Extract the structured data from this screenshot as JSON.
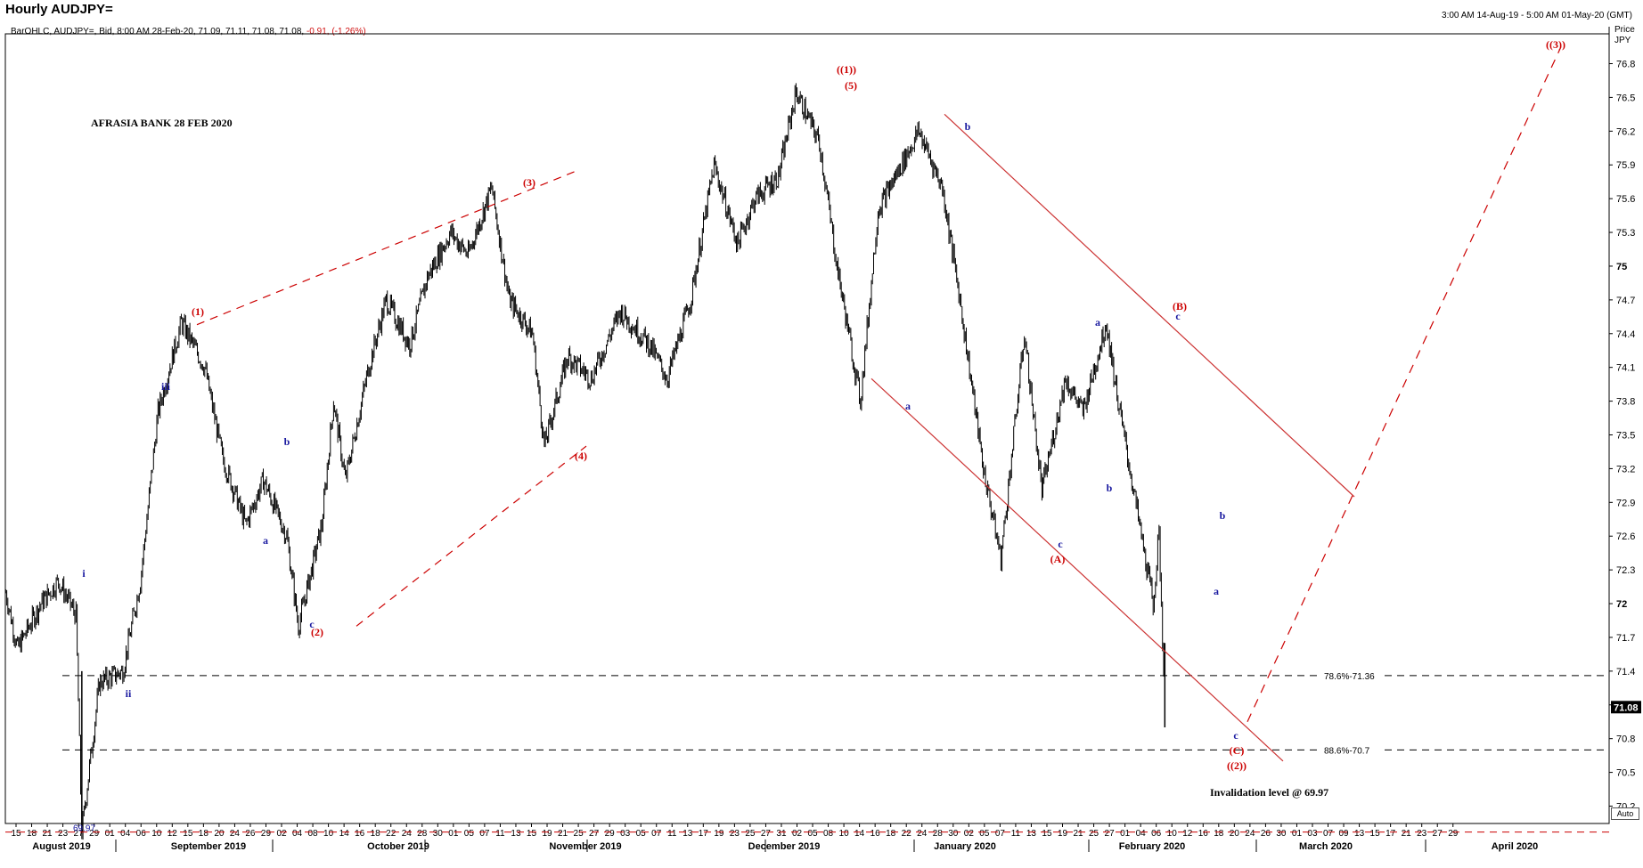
{
  "header": {
    "title": "Hourly AUDJPY=",
    "range": "3:00 AM 14-Aug-19 - 5:00 AM 01-May-20 (GMT)",
    "legend_main": "BarOHLC, AUDJPY=, Bid, 8:00 AM 28-Feb-20, 71.09, 71.11, 71.08, 71.08,",
    "legend_change": "-0.91, (-1.26%)"
  },
  "annotations": {
    "bank_note": "AFRASIA BANK 28 FEB 2020",
    "invalidation": "Invalidation level @ 69.97",
    "low_label": "69.97",
    "fib_786": "78.6%-71.36",
    "fib_886": "88.6%-70.7"
  },
  "price_axis": {
    "header_line1": "Price",
    "header_line2": "JPY",
    "last_price": "71.08",
    "auto_label": "Auto"
  },
  "colors": {
    "bars": "#000000",
    "wave_red": "#cc0000",
    "wave_blue": "#1a1aa0",
    "last_price_bg": "#000000"
  },
  "chart_data": {
    "type": "line",
    "title": "Hourly AUDJPY=",
    "ylabel": "Price JPY",
    "ylim": [
      69.9,
      77.0
    ],
    "y_ticks": [
      70.2,
      70.5,
      70.8,
      71.1,
      71.4,
      71.7,
      72,
      72.3,
      72.6,
      72.9,
      73.2,
      73.5,
      73.8,
      74.1,
      74.4,
      74.7,
      75,
      75.3,
      75.6,
      75.9,
      76.2,
      76.5,
      76.8
    ],
    "x_day_labels": [
      "15",
      "18",
      "21",
      "23",
      "27",
      "29",
      "01",
      "04",
      "06",
      "10",
      "12",
      "15",
      "18",
      "20",
      "24",
      "26",
      "29",
      "02",
      "04",
      "08",
      "10",
      "14",
      "16",
      "18",
      "22",
      "24",
      "28",
      "30",
      "01",
      "05",
      "07",
      "11",
      "13",
      "15",
      "19",
      "21",
      "25",
      "27",
      "29",
      "03",
      "05",
      "07",
      "11",
      "13",
      "17",
      "19",
      "23",
      "25",
      "27",
      "31",
      "02",
      "05",
      "08",
      "10",
      "14",
      "16",
      "18",
      "22",
      "24",
      "28",
      "30",
      "02",
      "05",
      "07",
      "11",
      "13",
      "15",
      "19",
      "21",
      "25",
      "27",
      "01",
      "04",
      "06",
      "10",
      "12",
      "16",
      "18",
      "20",
      "24",
      "26",
      "30",
      "01",
      "03",
      "07",
      "09",
      "13",
      "15",
      "17",
      "21",
      "23",
      "27",
      "29"
    ],
    "x_month_labels": [
      "August 2019",
      "September 2019",
      "October 2019",
      "November 2019",
      "December 2019",
      "January 2020",
      "February 2020",
      "March 2020",
      "April 2020"
    ],
    "series": [
      {
        "name": "AUDJPY=",
        "x": [
          "2019-08-14",
          "2019-08-16",
          "2019-08-20",
          "2019-08-23",
          "2019-08-26",
          "2019-08-27",
          "2019-08-30",
          "2019-09-03",
          "2019-09-06",
          "2019-09-09",
          "2019-09-12",
          "2019-09-13",
          "2019-09-17",
          "2019-09-20",
          "2019-09-24",
          "2019-09-27",
          "2019-10-01",
          "2019-10-03",
          "2019-10-07",
          "2019-10-09",
          "2019-10-11",
          "2019-10-15",
          "2019-10-18",
          "2019-10-22",
          "2019-10-25",
          "2019-10-29",
          "2019-11-01",
          "2019-11-05",
          "2019-11-08",
          "2019-11-12",
          "2019-11-14",
          "2019-11-18",
          "2019-11-22",
          "2019-11-27",
          "2019-12-02",
          "2019-12-05",
          "2019-12-09",
          "2019-12-13",
          "2019-12-17",
          "2019-12-20",
          "2019-12-24",
          "2019-12-27",
          "2019-12-31",
          "2020-01-03",
          "2020-01-07",
          "2020-01-10",
          "2020-01-14",
          "2020-01-17",
          "2020-01-21",
          "2020-01-24",
          "2020-01-28",
          "2020-01-31",
          "2020-02-04",
          "2020-02-07",
          "2020-02-11",
          "2020-02-14",
          "2020-02-18",
          "2020-02-20",
          "2020-02-24",
          "2020-02-26",
          "2020-02-27",
          "2020-02-28"
        ],
        "values": [
          72.1,
          71.6,
          72.0,
          72.2,
          71.9,
          69.97,
          71.3,
          71.4,
          72.2,
          73.7,
          74.3,
          74.5,
          74.1,
          73.3,
          72.7,
          73.1,
          72.6,
          71.8,
          72.7,
          73.8,
          73.1,
          74.1,
          74.7,
          74.3,
          74.9,
          75.3,
          75.1,
          75.7,
          74.7,
          74.4,
          73.4,
          74.2,
          74.0,
          74.6,
          74.3,
          74.0,
          74.7,
          75.9,
          75.2,
          75.6,
          75.8,
          76.55,
          76.1,
          75.0,
          73.8,
          75.5,
          75.9,
          76.2,
          75.7,
          74.7,
          73.2,
          72.4,
          74.4,
          73.0,
          74.0,
          73.7,
          74.5,
          73.8,
          72.6,
          72.0,
          72.6,
          71.08
        ]
      }
    ],
    "fib_levels": [
      {
        "label": "78.6%-71.36",
        "value": 71.36
      },
      {
        "label": "88.6%-70.7",
        "value": 70.7
      },
      {
        "label": "Invalidation level @ 69.97",
        "value": 69.97
      }
    ],
    "wave_labels": [
      {
        "text": "(1)",
        "color": "red"
      },
      {
        "text": "(2)",
        "color": "red"
      },
      {
        "text": "(3)",
        "color": "red"
      },
      {
        "text": "(4)",
        "color": "red"
      },
      {
        "text": "(5)",
        "color": "red"
      },
      {
        "text": "((1))",
        "color": "red"
      },
      {
        "text": "(A)",
        "color": "red"
      },
      {
        "text": "(B)",
        "color": "red"
      },
      {
        "text": "(C)",
        "color": "red"
      },
      {
        "text": "((2))",
        "color": "red"
      },
      {
        "text": "((3))",
        "color": "red"
      },
      {
        "text": "i",
        "color": "blue"
      },
      {
        "text": "ii",
        "color": "blue"
      },
      {
        "text": "iii",
        "color": "blue"
      },
      {
        "text": "a",
        "color": "blue"
      },
      {
        "text": "b",
        "color": "blue"
      },
      {
        "text": "c",
        "color": "blue"
      }
    ],
    "grid": false,
    "legend": "top-left"
  }
}
